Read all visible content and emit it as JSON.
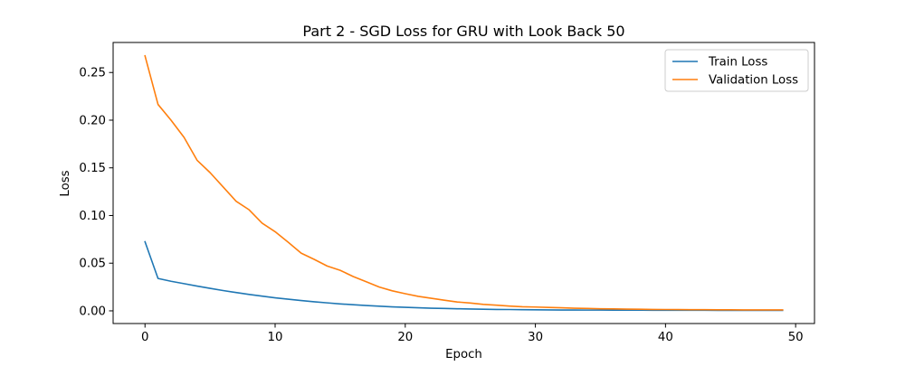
{
  "chart_data": {
    "type": "line",
    "title": "Part 2 - SGD Loss for GRU with Look Back 50",
    "xlabel": "Epoch",
    "ylabel": "Loss",
    "xlim": [
      -2.45,
      51.45
    ],
    "ylim": [
      -0.0133,
      0.2815
    ],
    "xticks": [
      0,
      10,
      20,
      30,
      40,
      50
    ],
    "yticks": [
      0.0,
      0.05,
      0.1,
      0.15,
      0.2,
      0.25
    ],
    "ytick_labels": [
      "0.00",
      "0.05",
      "0.10",
      "0.15",
      "0.20",
      "0.25"
    ],
    "grid": false,
    "legend_position": "top-right",
    "x": [
      0,
      1,
      2,
      3,
      4,
      5,
      6,
      7,
      8,
      9,
      10,
      11,
      12,
      13,
      14,
      15,
      16,
      17,
      18,
      19,
      20,
      21,
      22,
      23,
      24,
      25,
      26,
      27,
      28,
      29,
      30,
      31,
      32,
      33,
      34,
      35,
      36,
      37,
      38,
      39,
      40,
      41,
      42,
      43,
      44,
      45,
      46,
      47,
      48,
      49
    ],
    "series": [
      {
        "name": "Train Loss",
        "color": "#1f77b4",
        "values": [
          0.0725,
          0.034,
          0.031,
          0.0285,
          0.026,
          0.0236,
          0.0213,
          0.0192,
          0.0172,
          0.0154,
          0.0137,
          0.0122,
          0.0108,
          0.0095,
          0.0084,
          0.0073,
          0.0064,
          0.0056,
          0.0049,
          0.0042,
          0.0037,
          0.0032,
          0.0028,
          0.0025,
          0.0022,
          0.0019,
          0.0017,
          0.0015,
          0.0014,
          0.0012,
          0.0011,
          0.001,
          0.0009,
          0.0009,
          0.0008,
          0.0008,
          0.0007,
          0.0007,
          0.0007,
          0.0006,
          0.0006,
          0.0006,
          0.0006,
          0.0006,
          0.0005,
          0.0005,
          0.0005,
          0.0005,
          0.0005,
          0.0005
        ]
      },
      {
        "name": "Validation Loss",
        "color": "#ff7f0e",
        "values": [
          0.2675,
          0.2165,
          0.2,
          0.182,
          0.158,
          0.145,
          0.13,
          0.115,
          0.106,
          0.092,
          0.083,
          0.072,
          0.0605,
          0.054,
          0.047,
          0.0425,
          0.036,
          0.0305,
          0.025,
          0.021,
          0.018,
          0.0152,
          0.0132,
          0.0112,
          0.0093,
          0.0082,
          0.0068,
          0.006,
          0.005,
          0.0043,
          0.004,
          0.0036,
          0.0032,
          0.0028,
          0.0025,
          0.0022,
          0.002,
          0.0018,
          0.0017,
          0.0015,
          0.0014,
          0.0013,
          0.0012,
          0.0012,
          0.0011,
          0.0011,
          0.001,
          0.001,
          0.001,
          0.001
        ]
      }
    ]
  }
}
